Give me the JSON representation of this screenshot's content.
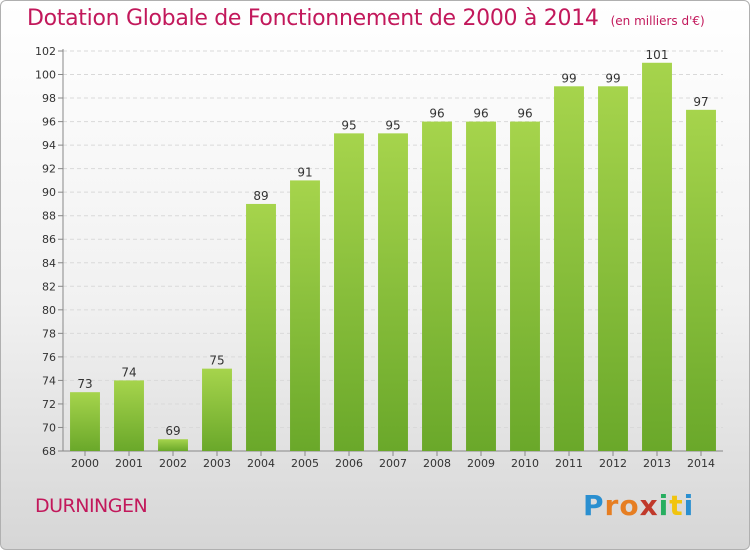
{
  "header": {
    "title": "Dotation Globale de Fonctionnement de 2000 à 2014",
    "unit": "(en milliers d'€)"
  },
  "footer": {
    "commune": "DURNINGEN",
    "logo": "Proxiti"
  },
  "colors": {
    "title": "#c2185b",
    "bar_light": "#a6d44c",
    "bar_dark": "#6aa82a",
    "grid": "#d9d9d9"
  },
  "chart_data": {
    "type": "bar",
    "title": "Dotation Globale de Fonctionnement de 2000 à 2014",
    "xlabel": "",
    "ylabel": "",
    "categories": [
      "2000",
      "2001",
      "2002",
      "2003",
      "2004",
      "2005",
      "2006",
      "2007",
      "2008",
      "2009",
      "2010",
      "2011",
      "2012",
      "2013",
      "2014"
    ],
    "values": [
      73,
      74,
      69,
      75,
      89,
      91,
      95,
      95,
      96,
      96,
      96,
      99,
      99,
      101,
      97
    ],
    "ylim": [
      68,
      102
    ],
    "yticks": [
      68,
      70,
      72,
      74,
      76,
      78,
      80,
      82,
      84,
      86,
      88,
      90,
      92,
      94,
      96,
      98,
      100,
      102
    ],
    "data_labels": true,
    "grid": "horizontal dashed",
    "legend": "none"
  }
}
